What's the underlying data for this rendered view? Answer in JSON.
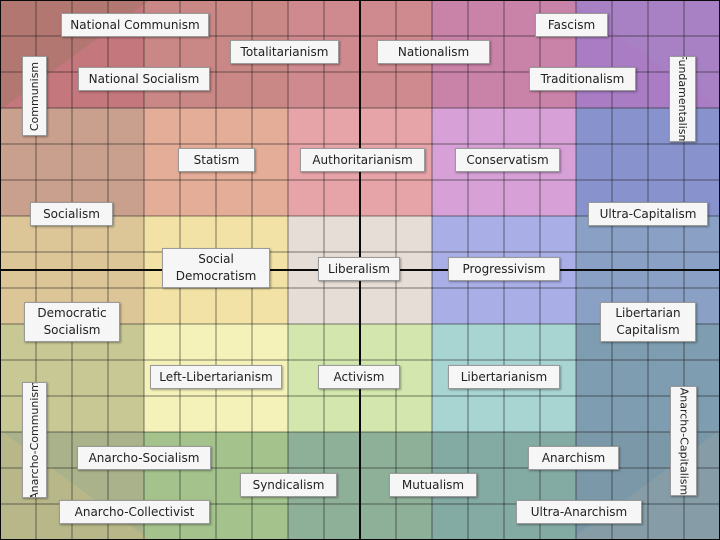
{
  "compass": {
    "labels": {
      "national_communism": "National Communism",
      "totalitarianism": "Totalitarianism",
      "nationalism": "Nationalism",
      "fascism": "Fascism",
      "communism": "Communism",
      "national_socialism": "National Socialism",
      "traditionalism": "Traditionalism",
      "fundamentalism": "Fundamentalism",
      "statism": "Statism",
      "authoritarianism": "Authoritarianism",
      "conservatism": "Conservatism",
      "socialism": "Socialism",
      "ultra_capitalism": "Ultra-Capitalism",
      "social_democratism": "Social\nDemocratism",
      "liberalism": "Liberalism",
      "progressivism": "Progressivism",
      "democratic_socialism": "Democratic\nSocialism",
      "libertarian_capitalism": "Libertarian\nCapitalism",
      "left_libertarianism": "Left-Libertarianism",
      "activism": "Activism",
      "libertarianism": "Libertarianism",
      "anarcho_communism": "Anarcho-Communism",
      "anarcho_capitalism": "Anarcho-Capitalism",
      "anarcho_socialism": "Anarcho-Socialism",
      "anarchism": "Anarchism",
      "syndicalism": "Syndicalism",
      "mutualism": "Mutualism",
      "anarcho_collectivist": "Anarcho-Collectivist",
      "ultra_anarchism": "Ultra-Anarchism"
    },
    "colors": {
      "grid_line": "#1a1a1a",
      "axis_line": "#0a0a0a",
      "ring1": [
        "#c4777c",
        "#c98886",
        "#cf8a8f",
        "#c982a8",
        "#a97cc4"
      ],
      "ring2": [
        "#c9a08d",
        "#e4ad98",
        "#e7a4a8",
        "#d7a1d7",
        "#8893cd"
      ],
      "ring3": [
        "#dcc597",
        "#f2e2a6",
        "#e6ddd6",
        "#a9aee6",
        "#8aa0c4"
      ],
      "ring4": [
        "#c8c894",
        "#f4f2b8",
        "#d3e6ad",
        "#a8d4d2",
        "#7f9db0"
      ],
      "ring5": [
        "#a9b28a",
        "#a4c28c",
        "#8fb098",
        "#84aaa4",
        "#7a98a8"
      ],
      "corner_tl": "#a8786c",
      "corner_tr": "#a785c4",
      "corner_bl": "#c1bb88",
      "corner_br": "#8ea0a6"
    }
  }
}
